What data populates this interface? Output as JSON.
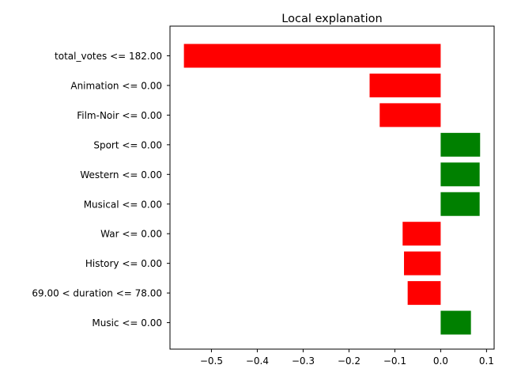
{
  "chart_data": {
    "type": "bar",
    "orientation": "horizontal",
    "title": "Local explanation",
    "xlabel": "",
    "ylabel": "",
    "categories": [
      "total_votes <= 182.00",
      "Animation <= 0.00",
      "Film-Noir <= 0.00",
      "Sport <= 0.00",
      "Western <= 0.00",
      "Musical <= 0.00",
      "War <= 0.00",
      "History <= 0.00",
      "69.00 < duration <= 78.00",
      "Music <= 0.00"
    ],
    "values": [
      -0.56,
      -0.155,
      -0.133,
      0.086,
      0.085,
      0.085,
      -0.083,
      -0.08,
      -0.072,
      0.066
    ],
    "xlim": [
      -0.5904,
      0.1166
    ],
    "xticks": [
      -0.5,
      -0.4,
      -0.3,
      -0.2,
      -0.1,
      0.0,
      0.1
    ],
    "xtick_labels": [
      "−0.5",
      "−0.4",
      "−0.3",
      "−0.2",
      "−0.1",
      "0.0",
      "0.1"
    ],
    "colors": {
      "positive": "#008000",
      "negative": "#ff0000"
    },
    "grid": false
  }
}
